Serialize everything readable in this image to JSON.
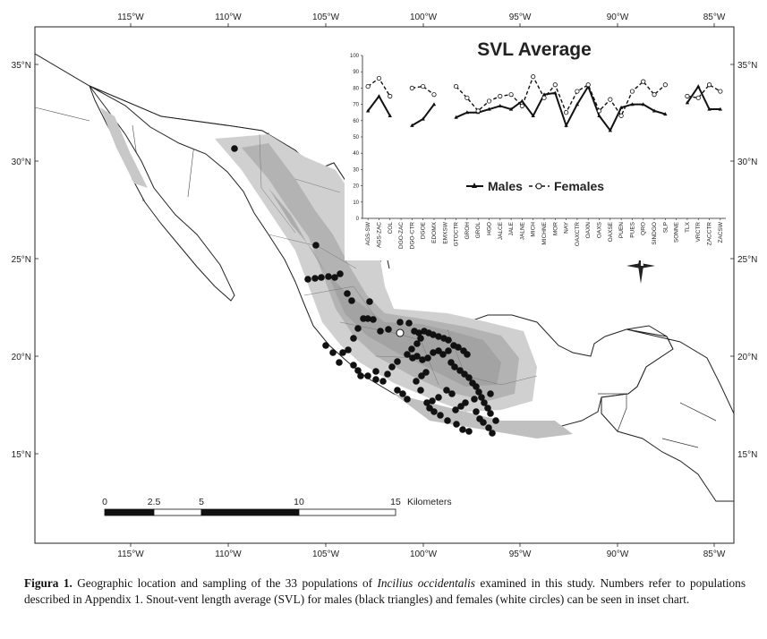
{
  "map": {
    "longitude_labels": [
      "115°W",
      "110°W",
      "105°W",
      "100°W",
      "95°W",
      "90°W",
      "85°W"
    ],
    "latitude_labels": [
      "35°N",
      "30°N",
      "25°N",
      "20°N",
      "15°N"
    ],
    "scale_bar": {
      "ticks": [
        "0",
        "2.5",
        "5",
        "10",
        "15"
      ],
      "unit": "Kilometers"
    },
    "colors": {
      "highland": "#d0d0d0",
      "mountain": "#b3b3b3",
      "peak": "#9c9c9c",
      "sample_point": "#111111",
      "outline": "#222222"
    }
  },
  "chart_data": {
    "type": "line",
    "title": "SVL Average",
    "ylim": [
      0,
      100
    ],
    "yticks": [
      0,
      10,
      20,
      30,
      40,
      50,
      60,
      70,
      80,
      90,
      100
    ],
    "categories": [
      "AGS-SW",
      "AGS-ZAC",
      "COL",
      "DGO-ZAC",
      "DGO-CTR",
      "DGOE",
      "EDOMX",
      "EMXSW",
      "GTOCTR",
      "GROH",
      "GROL",
      "HGO",
      "JALCE",
      "JALE",
      "JALNE",
      "MICH",
      "MICHNE",
      "MOR",
      "NAY",
      "OAXCTR",
      "OAXN",
      "OAXS",
      "OAXSE",
      "PUEN",
      "PUES",
      "QRO",
      "SINDGO",
      "SLP",
      "SONNE",
      "TLX",
      "VRCTR",
      "ZACCTR",
      "ZACSW"
    ],
    "legend": [
      "Males",
      "Females"
    ],
    "series": [
      {
        "name": "Males",
        "values": [
          66,
          75,
          63,
          null,
          57,
          61,
          70,
          null,
          62,
          65,
          65,
          67,
          69,
          67,
          72,
          63,
          76,
          77,
          57,
          70,
          81,
          63,
          54,
          68,
          70,
          70,
          66,
          64,
          null,
          71,
          81,
          67,
          67
        ]
      },
      {
        "name": "Females",
        "values": [
          81,
          86,
          75,
          null,
          80,
          81,
          76,
          null,
          81,
          74,
          66,
          72,
          75,
          76,
          69,
          87,
          74,
          82,
          65,
          78,
          82,
          66,
          73,
          63,
          78,
          84,
          76,
          82,
          null,
          75,
          74,
          82,
          78
        ]
      }
    ]
  },
  "caption": {
    "label": "Figura 1.",
    "text_before": " Geographic location and sampling of the 33 populations of ",
    "species": "Incilius occidentalis",
    "text_after": " examined in this study. Numbers refer to populations described in Appendix 1. Snout-vent length average (SVL) for males (black triangles) and females (white circles) can be seen in inset chart."
  }
}
